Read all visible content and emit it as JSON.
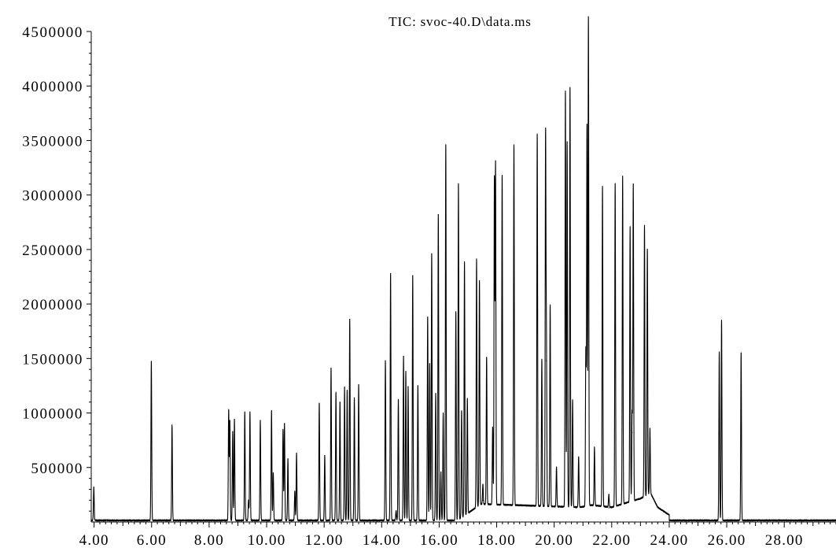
{
  "chart_data": {
    "type": "line",
    "title": "TIC: svoc-40.D\\data.ms",
    "xlabel": "",
    "ylabel": "",
    "xlim": [
      3.9,
      29.8
    ],
    "ylim": [
      0,
      4500000
    ],
    "grid": false,
    "legend": "none",
    "line_color": "#000000",
    "x_tick_labels": [
      "4.00",
      "6.00",
      "8.00",
      "10.00",
      "12.00",
      "14.00",
      "16.00",
      "18.00",
      "20.00",
      "22.00",
      "24.00",
      "26.00",
      "28.00"
    ],
    "x_ticks": [
      4,
      6,
      8,
      10,
      12,
      14,
      16,
      18,
      20,
      22,
      24,
      26,
      28
    ],
    "y_tick_labels": [
      "500000",
      "1000000",
      "1500000",
      "2000000",
      "2500000",
      "3000000",
      "3500000",
      "4000000",
      "4500000"
    ],
    "y_ticks": [
      500000,
      1000000,
      1500000,
      2000000,
      2500000,
      3000000,
      3500000,
      4000000,
      4500000
    ],
    "series": [
      {
        "baseline": 15000,
        "peaks": [
          [
            3.99,
            320000
          ],
          [
            5.99,
            1470000
          ],
          [
            6.71,
            890000
          ],
          [
            8.68,
            1020000
          ],
          [
            8.72,
            920000
          ],
          [
            8.82,
            830000
          ],
          [
            8.88,
            940000
          ],
          [
            9.24,
            1010000
          ],
          [
            9.37,
            200000
          ],
          [
            9.42,
            1010000
          ],
          [
            9.78,
            930000
          ],
          [
            10.17,
            1020000
          ],
          [
            10.23,
            450000
          ],
          [
            10.57,
            850000
          ],
          [
            10.62,
            900000
          ],
          [
            10.74,
            580000
          ],
          [
            10.98,
            280000
          ],
          [
            11.04,
            630000
          ],
          [
            11.83,
            1090000
          ],
          [
            12.02,
            610000
          ],
          [
            12.24,
            1410000
          ],
          [
            12.41,
            1190000
          ],
          [
            12.55,
            1100000
          ],
          [
            12.71,
            1240000
          ],
          [
            12.8,
            1210000
          ],
          [
            12.89,
            1860000
          ],
          [
            13.05,
            1140000
          ],
          [
            13.2,
            1260000
          ],
          [
            14.13,
            1480000
          ],
          [
            14.31,
            2280000
          ],
          [
            14.5,
            100000
          ],
          [
            14.58,
            1120000
          ],
          [
            14.76,
            1520000
          ],
          [
            14.84,
            1380000
          ],
          [
            14.92,
            1240000
          ],
          [
            15.08,
            2260000
          ],
          [
            15.26,
            1250000
          ],
          [
            15.6,
            1880000
          ],
          [
            15.67,
            1450000
          ],
          [
            15.74,
            2460000
          ],
          [
            15.88,
            1180000
          ],
          [
            15.97,
            2820000
          ],
          [
            16.06,
            460000
          ],
          [
            16.14,
            1000000
          ],
          [
            16.23,
            3460000
          ],
          [
            16.58,
            1930000
          ],
          [
            16.67,
            3100000
          ],
          [
            16.78,
            1000000
          ],
          [
            16.88,
            2340000
          ],
          [
            16.98,
            1070000
          ],
          [
            17.3,
            2290000
          ],
          [
            17.4,
            2080000
          ],
          [
            17.52,
            200000
          ],
          [
            17.65,
            1370000
          ],
          [
            17.86,
            730000
          ],
          [
            17.92,
            3000000
          ],
          [
            17.96,
            3140000
          ],
          [
            18.19,
            3040000
          ],
          [
            18.6,
            3320000
          ],
          [
            19.41,
            3430000
          ],
          [
            19.57,
            1360000
          ],
          [
            19.7,
            3380000
          ],
          [
            19.73,
            1480000
          ],
          [
            19.86,
            1860000
          ],
          [
            20.08,
            380000
          ],
          [
            20.39,
            3830000
          ],
          [
            20.45,
            3360000
          ],
          [
            20.55,
            3870000
          ],
          [
            20.64,
            1000000
          ],
          [
            20.85,
            480000
          ],
          [
            21.1,
            1450000
          ],
          [
            21.14,
            3500000
          ],
          [
            21.19,
            4500000
          ],
          [
            21.4,
            550000
          ],
          [
            21.68,
            2950000
          ],
          [
            21.9,
            130000
          ],
          [
            22.12,
            2980000
          ],
          [
            22.38,
            3020000
          ],
          [
            22.64,
            2540000
          ],
          [
            22.71,
            820000
          ],
          [
            22.75,
            2920000
          ],
          [
            23.14,
            2500000
          ],
          [
            23.24,
            2270000
          ],
          [
            23.33,
            610000
          ],
          [
            25.74,
            1560000
          ],
          [
            25.82,
            1850000
          ],
          [
            26.5,
            1550000
          ]
        ],
        "hump": [
          [
            17.45,
            150000
          ],
          [
            20.9,
            120000
          ],
          [
            21.3,
            140000
          ],
          [
            22.0,
            120000
          ],
          [
            23.0,
            200000
          ],
          [
            23.35,
            250000
          ],
          [
            23.6,
            120000
          ],
          [
            24.0,
            50000
          ]
        ]
      }
    ]
  }
}
